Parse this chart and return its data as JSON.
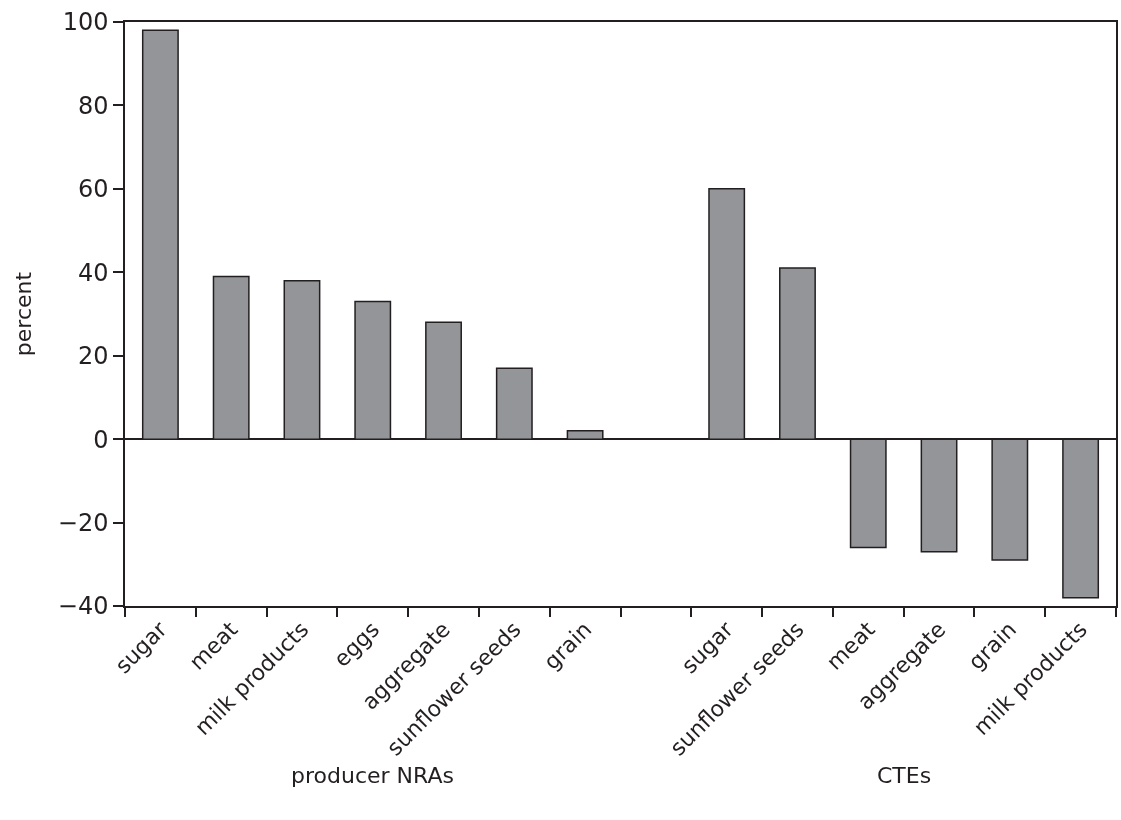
{
  "chart_data": {
    "type": "bar",
    "ylabel": "percent",
    "categories": [
      "sugar",
      "meat",
      "milk products",
      "eggs",
      "aggregate",
      "sunflower seeds",
      "grain",
      null,
      "sugar",
      "sunflower seeds",
      "meat",
      "aggregate",
      "grain",
      "milk products"
    ],
    "values": [
      98,
      39,
      38,
      33,
      28,
      17,
      2,
      null,
      60,
      41,
      -26,
      -27,
      -29,
      -38
    ],
    "color": "#939598",
    "ylim": [
      -40,
      100
    ],
    "yticks": [
      {
        "value": -40,
        "label": "−40"
      },
      {
        "value": -20,
        "label": "−20"
      },
      0,
      20,
      40,
      60,
      80,
      100
    ],
    "annotations": [
      "producer NRAs",
      "CTEs"
    ]
  }
}
